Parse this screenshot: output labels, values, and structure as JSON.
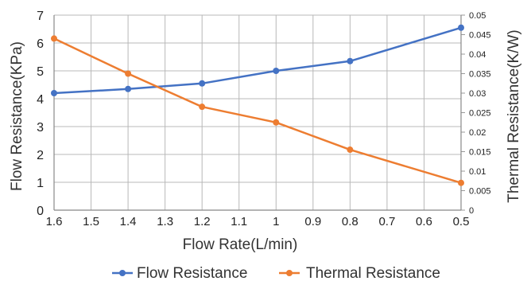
{
  "chart_data": {
    "type": "line",
    "title": "",
    "xlabel": "Flow Rate(L/min)",
    "ylabel_left": "Flow Resistance(KPa)",
    "ylabel_right": "Thermal Resistance(K/W)",
    "x_ticks": [
      "1.6",
      "1.5",
      "1.4",
      "1.3",
      "1.2",
      "1.1",
      "1",
      "0.9",
      "0.8",
      "0.7",
      "0.6",
      "0.5"
    ],
    "x_range": [
      1.6,
      0.5
    ],
    "y_left_ticks": [
      "0",
      "1",
      "2",
      "3",
      "4",
      "5",
      "6",
      "7"
    ],
    "y_left_range": [
      0,
      7
    ],
    "y_right_ticks": [
      "0",
      "0.005",
      "0.01",
      "0.015",
      "0.02",
      "0.025",
      "0.03",
      "0.035",
      "0.04",
      "0.045",
      "0.05"
    ],
    "y_right_range": [
      0,
      0.05
    ],
    "grid": true,
    "legend_position": "bottom",
    "series": [
      {
        "name": "Flow Resistance",
        "axis": "left",
        "color": "#4472C4",
        "x": [
          1.6,
          1.4,
          1.2,
          1.0,
          0.8,
          0.5
        ],
        "values": [
          4.2,
          4.35,
          4.55,
          5.0,
          5.35,
          6.55
        ]
      },
      {
        "name": "Thermal Resistance",
        "axis": "right",
        "color": "#ED7D31",
        "x": [
          1.6,
          1.4,
          1.2,
          1.0,
          0.8,
          0.5
        ],
        "values": [
          0.044,
          0.035,
          0.0265,
          0.0225,
          0.0155,
          0.007
        ]
      }
    ]
  }
}
